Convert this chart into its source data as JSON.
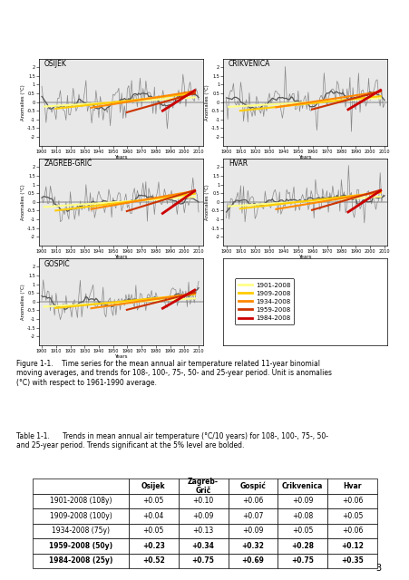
{
  "page_width": 4.52,
  "page_height": 6.4,
  "background_color": "#ffffff",
  "plots": [
    {
      "title": "OSIJEK",
      "xlim": [
        1898,
        2013
      ],
      "ylim": [
        -2.5,
        2.5
      ],
      "xticks": [
        1900,
        1910,
        1920,
        1930,
        1940,
        1950,
        1960,
        1970,
        1980,
        1990,
        2000,
        2010
      ]
    },
    {
      "title": "CRIKVENICA",
      "xlim": [
        1898,
        2012
      ],
      "ylim": [
        -2.5,
        2.5
      ],
      "xticks": [
        1900,
        1910,
        1920,
        1930,
        1940,
        1950,
        1960,
        1970,
        1980,
        1990,
        2000,
        2010
      ]
    },
    {
      "title": "ZAGREB-GRIĆ",
      "xlim": [
        1898,
        2013
      ],
      "ylim": [
        -2.5,
        2.5
      ],
      "xticks": [
        1900,
        1910,
        1920,
        1930,
        1940,
        1950,
        1960,
        1970,
        1980,
        1990,
        2000,
        2010
      ]
    },
    {
      "title": "HVAR",
      "xlim": [
        1898,
        2012
      ],
      "ylim": [
        -2.5,
        2.5
      ],
      "xticks": [
        1900,
        1910,
        1920,
        1930,
        1940,
        1950,
        1960,
        1970,
        1980,
        1990,
        2000,
        2010
      ]
    },
    {
      "title": "GOSPIĆ",
      "xlim": [
        1898,
        2013
      ],
      "ylim": [
        -2.5,
        2.5
      ],
      "xticks": [
        1900,
        1910,
        1920,
        1930,
        1940,
        1950,
        1960,
        1970,
        1980,
        1990,
        2000,
        2010
      ]
    }
  ],
  "trend_colors": [
    "#ffff88",
    "#ffcc00",
    "#ff8800",
    "#cc3300",
    "#cc0000"
  ],
  "trend_labels": [
    "1901-2008",
    "1909-2008",
    "1934-2008",
    "1959-2008",
    "1984-2008"
  ],
  "trend_linewidths": [
    1.5,
    1.5,
    1.5,
    1.5,
    2.0
  ],
  "figure_caption_bold": "Figure 1-1.",
  "figure_caption_rest": "   Time series for the mean annual air temperature related 11-year binomial moving averages, and trends for 108-, 100-, 75-, 50- and 25-year period. Unit is anomalies (°C) with respect to 1961-1990 average.",
  "table_caption_bold": "Table 1-1.",
  "table_caption_rest": "      Trends in mean annual air temperature (°C/10 years) for 108-, 100-, 75-, 50- and 25-year period. Trends significant at the 5% level are bolded.",
  "table_headers": [
    "",
    "Osijek",
    "Zagreb-\nGrič",
    "Gospić",
    "Crikvenica",
    "Hvar"
  ],
  "table_rows": [
    [
      "1901-2008 (108y)",
      "+0.05",
      "+0.10",
      "+0.06",
      "+0.09",
      "+0.06"
    ],
    [
      "1909-2008 (100y)",
      "+0.04",
      "+0.09",
      "+0.07",
      "+0.08",
      "+0.05"
    ],
    [
      "1934-2008 (75y)",
      "+0.05",
      "+0.13",
      "+0.09",
      "+0.05",
      "+0.06"
    ],
    [
      "1959-2008 (50y)",
      "+0.23",
      "+0.34",
      "+0.32",
      "+0.28",
      "+0.12"
    ],
    [
      "1984-2008 (25y)",
      "+0.52",
      "+0.75",
      "+0.69",
      "+0.75",
      "+0.35"
    ]
  ],
  "bold_rows": [
    3,
    4
  ],
  "page_number": "3",
  "plot_bg": "#e8e8e8",
  "raw_color": "#888888",
  "ma_color": "#555555"
}
